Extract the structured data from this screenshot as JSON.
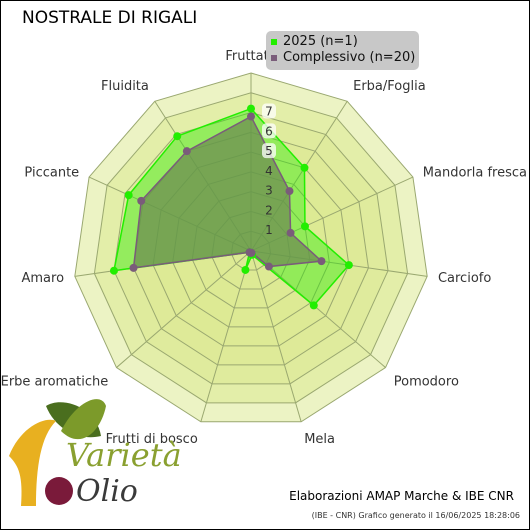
{
  "title": "NOSTRALE DI RIGALI",
  "colors": {
    "ring_fill": "#dcea94",
    "ring_stroke": "#9aa870",
    "series_2025": "#22ee00",
    "series_overall": "#7a5c7a",
    "overall_fill": "#6e8e52"
  },
  "chart_data": {
    "type": "radar",
    "title": "NOSTRALE DI RIGALI",
    "axes": [
      "Fruttato",
      "Erba/Foglia",
      "Mandorla fresca",
      "Carciofo",
      "Pomodoro",
      "Mela",
      "Frutti di bosco",
      "Erbe aromatiche",
      "Amaro",
      "Piccante",
      "Fluidita"
    ],
    "rlim": [
      0,
      9
    ],
    "ticks": [
      1,
      2,
      3,
      4,
      5,
      6,
      7
    ],
    "series": [
      {
        "name": "2025 (n=1)",
        "values": [
          7.2,
          5.0,
          3.0,
          5.0,
          4.2,
          0.2,
          1.0,
          0.1,
          7.0,
          6.8,
          6.9
        ]
      },
      {
        "name": "Complessivo (n=20)",
        "values": [
          6.8,
          3.6,
          2.2,
          3.6,
          1.2,
          0.1,
          0.1,
          0.1,
          6.0,
          6.1,
          6.0
        ]
      }
    ],
    "legend": "top-right",
    "grid": true
  },
  "credits": {
    "main": "Elaborazioni AMAP Marche & IBE CNR",
    "sub": "(IBE - CNR) Grafico generato il 16/06/2025 18:28:06"
  },
  "logo": {
    "line1": "Varietà",
    "line2": "Olio"
  }
}
